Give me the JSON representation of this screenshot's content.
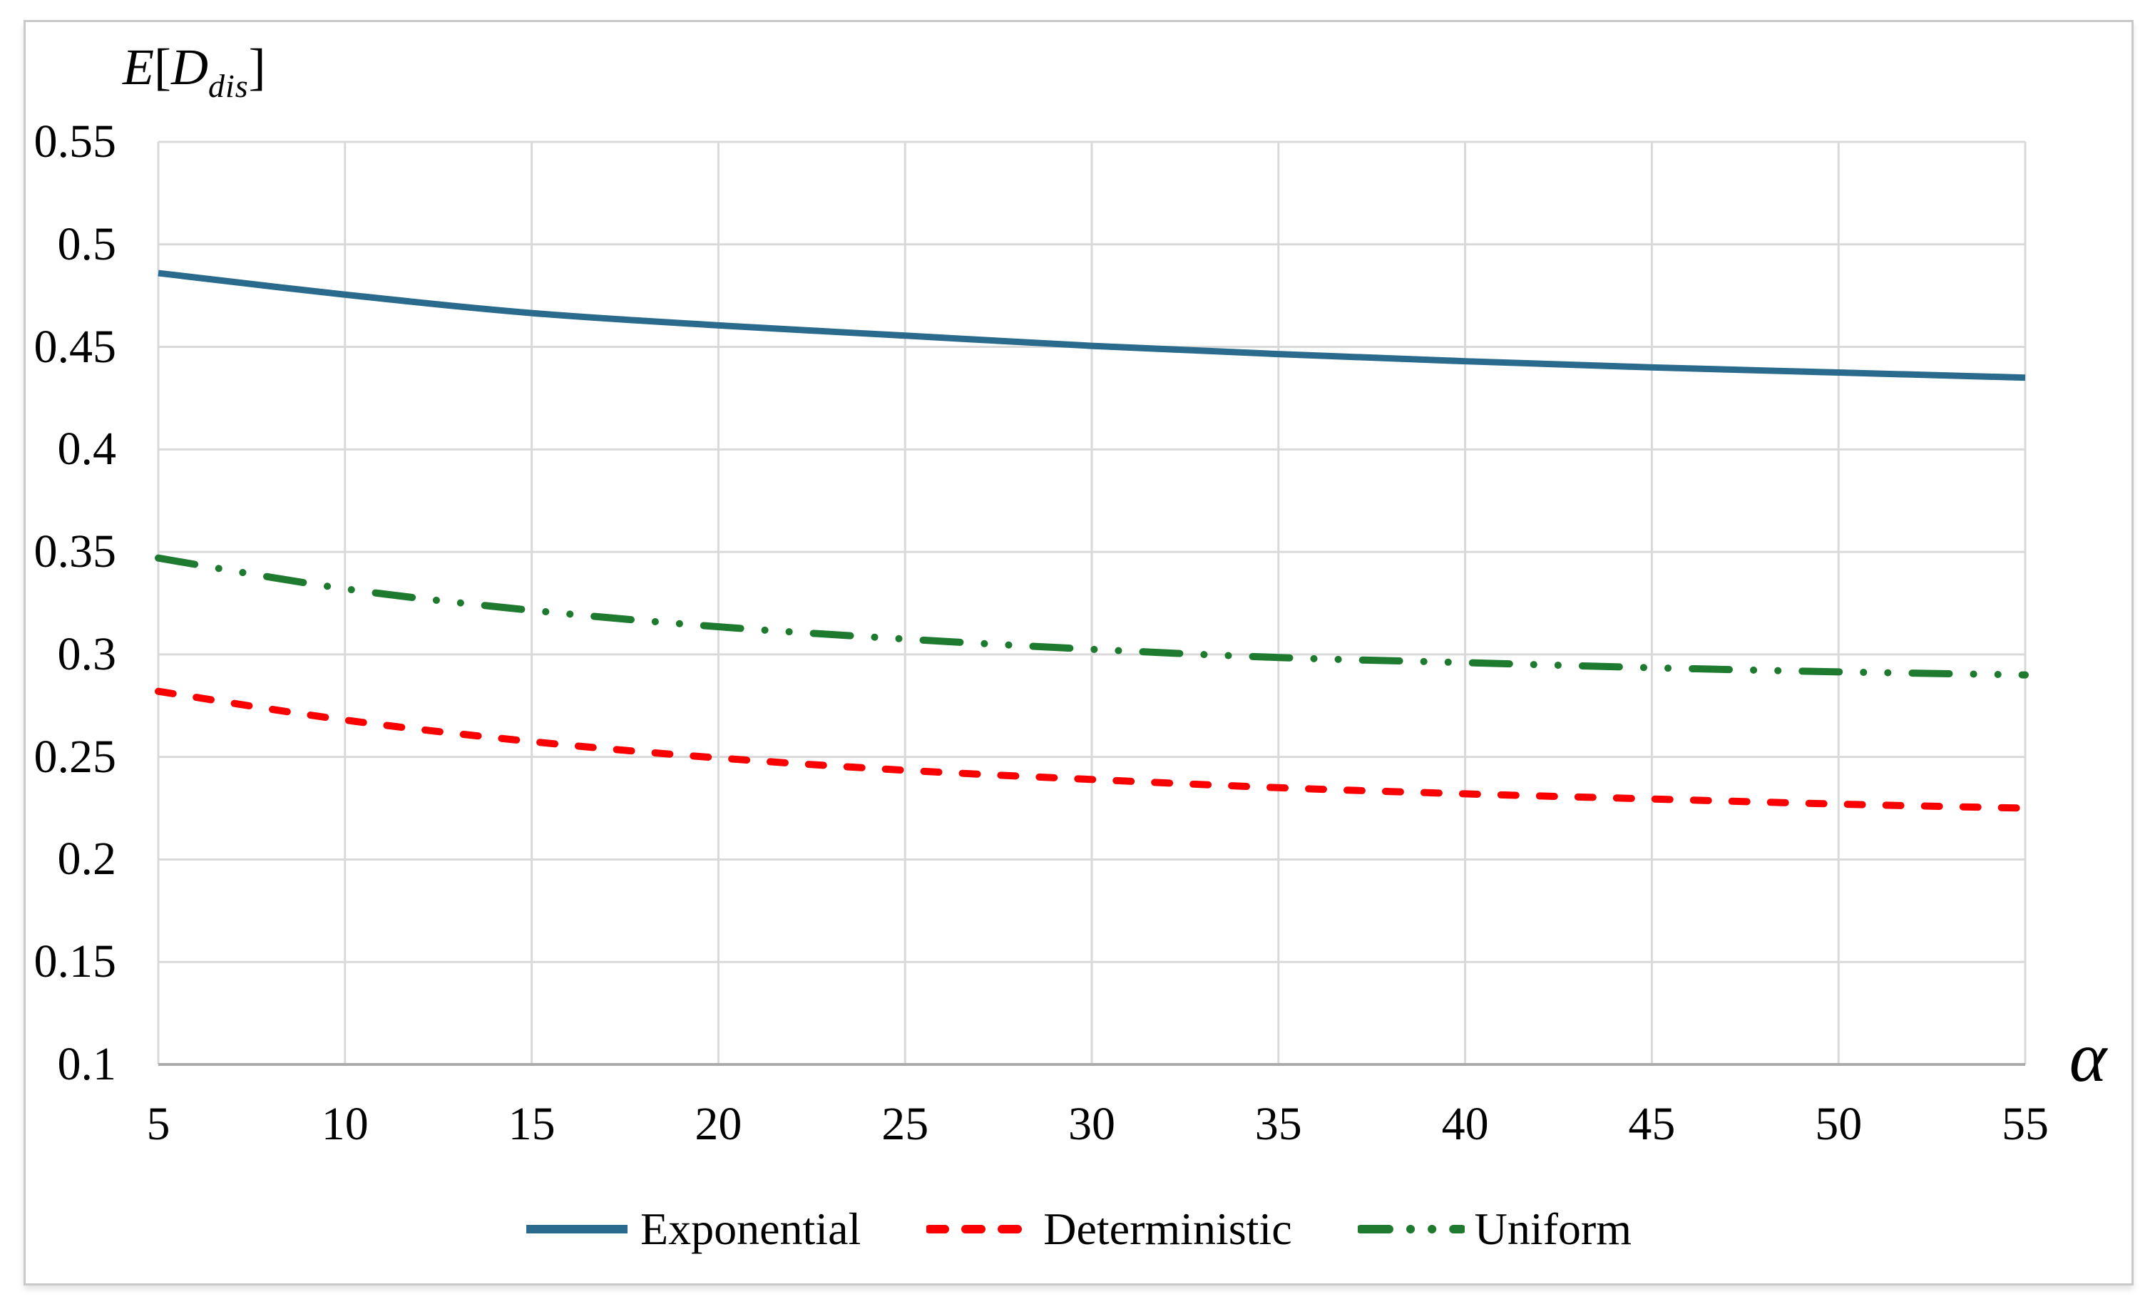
{
  "figure": {
    "y_axis_title": {
      "symbol": "E",
      "open_bracket": "[",
      "variable": "D",
      "subscript": "dis",
      "close_bracket": "]"
    },
    "x_axis_title": "α"
  },
  "colors": {
    "gridline": "#D9D9D9",
    "axis_line": "#ABABAB",
    "frame_border": "#C9C9C9",
    "text": "#000000"
  },
  "chart_data": {
    "type": "line",
    "title": "",
    "xlabel": "α",
    "ylabel": "E[D_dis]",
    "grid": true,
    "legend_position": "bottom",
    "x_axis": {
      "min": 5,
      "max": 55,
      "ticks": [
        5,
        10,
        15,
        20,
        25,
        30,
        35,
        40,
        45,
        50,
        55
      ],
      "tick_labels": [
        "5",
        "10",
        "15",
        "20",
        "25",
        "30",
        "35",
        "40",
        "45",
        "50",
        "55"
      ]
    },
    "y_axis": {
      "min": 0.1,
      "max": 0.55,
      "ticks": [
        0.55,
        0.5,
        0.45,
        0.4,
        0.35,
        0.3,
        0.25,
        0.2,
        0.15,
        0.1
      ],
      "tick_labels": [
        "0.55",
        "0.5",
        "0.45",
        "0.4",
        "0.35",
        "0.3",
        "0.25",
        "0.2",
        "0.15",
        "0.1"
      ]
    },
    "x": [
      5,
      10,
      15,
      20,
      25,
      30,
      35,
      40,
      45,
      50,
      55
    ],
    "series": [
      {
        "name": "Exponential",
        "line_style": "solid",
        "color": "#2A6B8D",
        "values": [
          0.486,
          0.4755,
          0.4665,
          0.4605,
          0.4555,
          0.4505,
          0.4465,
          0.443,
          0.44,
          0.4375,
          0.435
        ]
      },
      {
        "name": "Deterministic",
        "line_style": "dashed",
        "color": "#FB0000",
        "values": [
          0.282,
          0.268,
          0.2575,
          0.2495,
          0.2435,
          0.239,
          0.235,
          0.232,
          0.2295,
          0.227,
          0.225
        ]
      },
      {
        "name": "Uniform",
        "line_style": "dash-dot-dot",
        "color": "#1E7A2E",
        "values": [
          0.347,
          0.332,
          0.3215,
          0.3135,
          0.3075,
          0.3025,
          0.2985,
          0.296,
          0.2935,
          0.2915,
          0.29
        ]
      }
    ]
  }
}
